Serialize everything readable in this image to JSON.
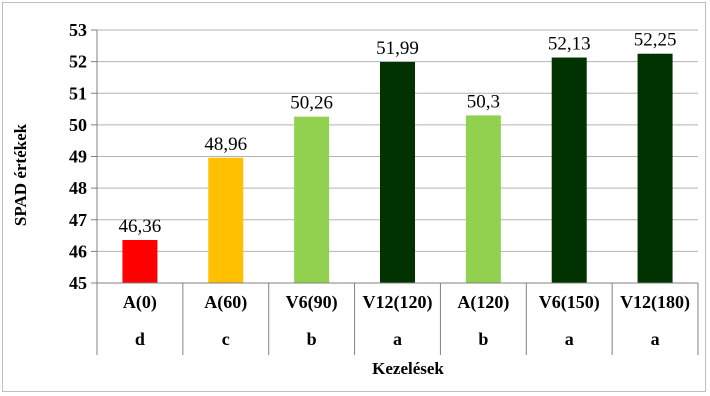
{
  "chart_data": {
    "type": "bar",
    "title": "",
    "xlabel": "Kezelések",
    "ylabel": "SPAD értékek",
    "ylim": [
      45,
      53
    ],
    "yticks": [
      "45",
      "46",
      "47",
      "48",
      "49",
      "50",
      "51",
      "52",
      "53"
    ],
    "grid": true,
    "legend": "none",
    "categories": [
      "A(0)",
      "A(60)",
      "V6(90)",
      "V12(120)",
      "A(120)",
      "V6(150)",
      "V12(180)"
    ],
    "groups": [
      "d",
      "c",
      "b",
      "a",
      "b",
      "a",
      "a"
    ],
    "values": [
      46.36,
      48.96,
      50.26,
      51.99,
      50.3,
      52.13,
      52.25
    ],
    "value_labels": [
      "46,36",
      "48,96",
      "50,26",
      "51,99",
      "50,3",
      "52,13",
      "52,25"
    ],
    "colors": [
      "#ff0000",
      "#ffc000",
      "#92d050",
      "#003300",
      "#92d050",
      "#003300",
      "#003300"
    ]
  }
}
